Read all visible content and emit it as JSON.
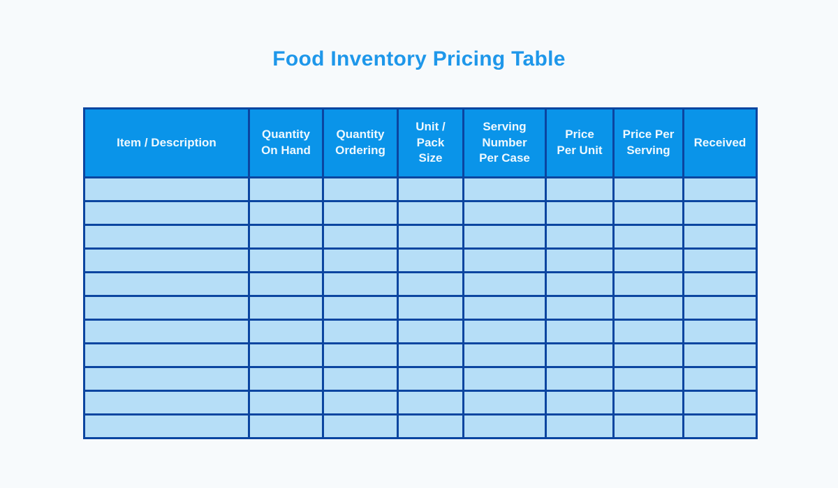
{
  "page": {
    "title": "Food Inventory Pricing Table"
  },
  "colors": {
    "page_background": "#f7fafc",
    "title_text": "#1e97ea",
    "header_background": "#0a94e9",
    "header_text": "#eef8fe",
    "table_border": "#0b45a0",
    "row_background": "#b6def7"
  },
  "table": {
    "columns": [
      {
        "label": "Item / Description"
      },
      {
        "label": "Quantity\nOn Hand"
      },
      {
        "label": "Quantity\nOrdering"
      },
      {
        "label": "Unit /\nPack\nSize"
      },
      {
        "label": "Serving\nNumber\nPer Case"
      },
      {
        "label": "Price\nPer Unit"
      },
      {
        "label": "Price Per\nServing"
      },
      {
        "label": "Received"
      }
    ],
    "row_count": 11,
    "rows": [
      [
        "",
        "",
        "",
        "",
        "",
        "",
        "",
        ""
      ],
      [
        "",
        "",
        "",
        "",
        "",
        "",
        "",
        ""
      ],
      [
        "",
        "",
        "",
        "",
        "",
        "",
        "",
        ""
      ],
      [
        "",
        "",
        "",
        "",
        "",
        "",
        "",
        ""
      ],
      [
        "",
        "",
        "",
        "",
        "",
        "",
        "",
        ""
      ],
      [
        "",
        "",
        "",
        "",
        "",
        "",
        "",
        ""
      ],
      [
        "",
        "",
        "",
        "",
        "",
        "",
        "",
        ""
      ],
      [
        "",
        "",
        "",
        "",
        "",
        "",
        "",
        ""
      ],
      [
        "",
        "",
        "",
        "",
        "",
        "",
        "",
        ""
      ],
      [
        "",
        "",
        "",
        "",
        "",
        "",
        "",
        ""
      ],
      [
        "",
        "",
        "",
        "",
        "",
        "",
        "",
        ""
      ]
    ]
  }
}
